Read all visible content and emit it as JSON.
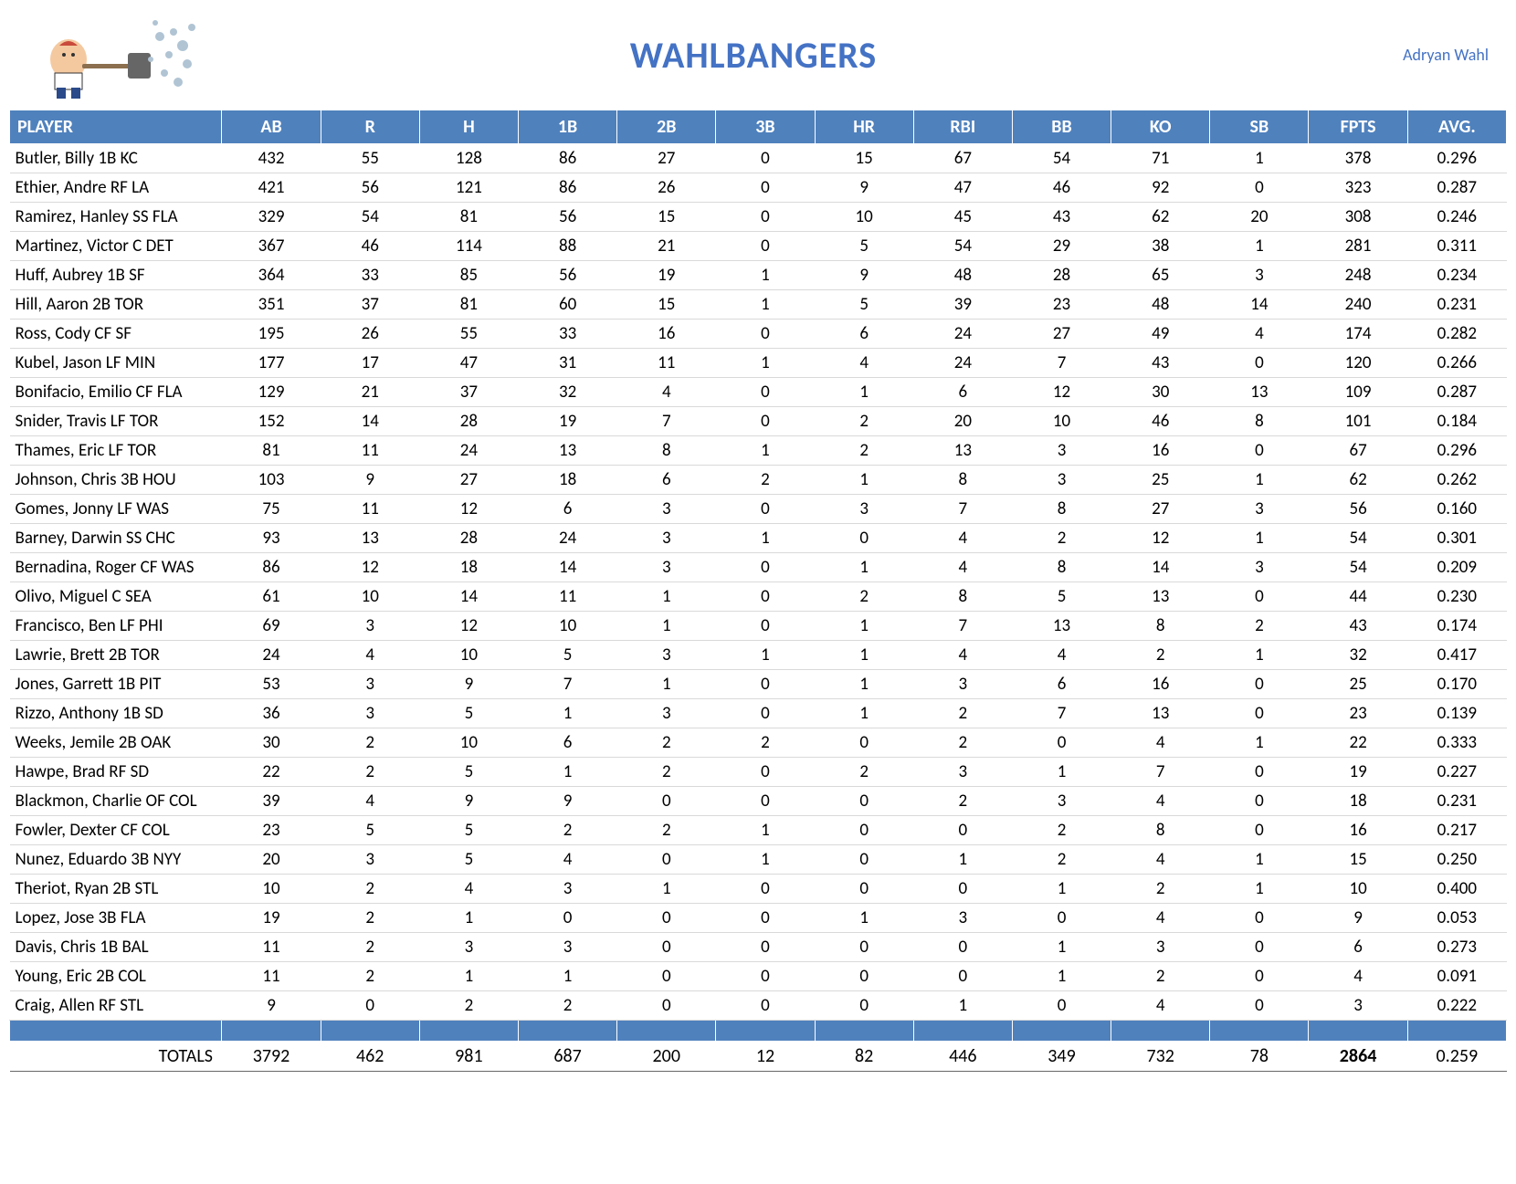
{
  "team_name": "WAHLBANGERS",
  "owner_name": "Adryan Wahl",
  "header_color": "#4f81bd",
  "title_color": "#4472c4",
  "columns": [
    "PLAYER",
    "AB",
    "R",
    "H",
    "1B",
    "2B",
    "3B",
    "HR",
    "RBI",
    "BB",
    "KO",
    "SB",
    "FPTS",
    "AVG."
  ],
  "rows": [
    {
      "player": "Butler, Billy 1B KC",
      "ab": "432",
      "r": "55",
      "h": "128",
      "_1b": "86",
      "_2b": "27",
      "_3b": "0",
      "hr": "15",
      "rbi": "67",
      "bb": "54",
      "ko": "71",
      "sb": "1",
      "fpts": "378",
      "avg": "0.296"
    },
    {
      "player": "Ethier, Andre RF LA",
      "ab": "421",
      "r": "56",
      "h": "121",
      "_1b": "86",
      "_2b": "26",
      "_3b": "0",
      "hr": "9",
      "rbi": "47",
      "bb": "46",
      "ko": "92",
      "sb": "0",
      "fpts": "323",
      "avg": "0.287"
    },
    {
      "player": "Ramirez, Hanley SS FLA",
      "ab": "329",
      "r": "54",
      "h": "81",
      "_1b": "56",
      "_2b": "15",
      "_3b": "0",
      "hr": "10",
      "rbi": "45",
      "bb": "43",
      "ko": "62",
      "sb": "20",
      "fpts": "308",
      "avg": "0.246"
    },
    {
      "player": "Martinez, Victor C DET",
      "ab": "367",
      "r": "46",
      "h": "114",
      "_1b": "88",
      "_2b": "21",
      "_3b": "0",
      "hr": "5",
      "rbi": "54",
      "bb": "29",
      "ko": "38",
      "sb": "1",
      "fpts": "281",
      "avg": "0.311"
    },
    {
      "player": "Huff, Aubrey 1B SF",
      "ab": "364",
      "r": "33",
      "h": "85",
      "_1b": "56",
      "_2b": "19",
      "_3b": "1",
      "hr": "9",
      "rbi": "48",
      "bb": "28",
      "ko": "65",
      "sb": "3",
      "fpts": "248",
      "avg": "0.234"
    },
    {
      "player": "Hill, Aaron 2B TOR",
      "ab": "351",
      "r": "37",
      "h": "81",
      "_1b": "60",
      "_2b": "15",
      "_3b": "1",
      "hr": "5",
      "rbi": "39",
      "bb": "23",
      "ko": "48",
      "sb": "14",
      "fpts": "240",
      "avg": "0.231"
    },
    {
      "player": "Ross, Cody CF SF",
      "ab": "195",
      "r": "26",
      "h": "55",
      "_1b": "33",
      "_2b": "16",
      "_3b": "0",
      "hr": "6",
      "rbi": "24",
      "bb": "27",
      "ko": "49",
      "sb": "4",
      "fpts": "174",
      "avg": "0.282"
    },
    {
      "player": "Kubel, Jason LF MIN",
      "ab": "177",
      "r": "17",
      "h": "47",
      "_1b": "31",
      "_2b": "11",
      "_3b": "1",
      "hr": "4",
      "rbi": "24",
      "bb": "7",
      "ko": "43",
      "sb": "0",
      "fpts": "120",
      "avg": "0.266"
    },
    {
      "player": "Bonifacio, Emilio CF FLA",
      "ab": "129",
      "r": "21",
      "h": "37",
      "_1b": "32",
      "_2b": "4",
      "_3b": "0",
      "hr": "1",
      "rbi": "6",
      "bb": "12",
      "ko": "30",
      "sb": "13",
      "fpts": "109",
      "avg": "0.287"
    },
    {
      "player": "Snider, Travis LF TOR",
      "ab": "152",
      "r": "14",
      "h": "28",
      "_1b": "19",
      "_2b": "7",
      "_3b": "0",
      "hr": "2",
      "rbi": "20",
      "bb": "10",
      "ko": "46",
      "sb": "8",
      "fpts": "101",
      "avg": "0.184"
    },
    {
      "player": "Thames, Eric LF TOR",
      "ab": "81",
      "r": "11",
      "h": "24",
      "_1b": "13",
      "_2b": "8",
      "_3b": "1",
      "hr": "2",
      "rbi": "13",
      "bb": "3",
      "ko": "16",
      "sb": "0",
      "fpts": "67",
      "avg": "0.296"
    },
    {
      "player": "Johnson, Chris 3B HOU",
      "ab": "103",
      "r": "9",
      "h": "27",
      "_1b": "18",
      "_2b": "6",
      "_3b": "2",
      "hr": "1",
      "rbi": "8",
      "bb": "3",
      "ko": "25",
      "sb": "1",
      "fpts": "62",
      "avg": "0.262"
    },
    {
      "player": "Gomes, Jonny LF WAS",
      "ab": "75",
      "r": "11",
      "h": "12",
      "_1b": "6",
      "_2b": "3",
      "_3b": "0",
      "hr": "3",
      "rbi": "7",
      "bb": "8",
      "ko": "27",
      "sb": "3",
      "fpts": "56",
      "avg": "0.160"
    },
    {
      "player": "Barney, Darwin SS CHC",
      "ab": "93",
      "r": "13",
      "h": "28",
      "_1b": "24",
      "_2b": "3",
      "_3b": "1",
      "hr": "0",
      "rbi": "4",
      "bb": "2",
      "ko": "12",
      "sb": "1",
      "fpts": "54",
      "avg": "0.301"
    },
    {
      "player": "Bernadina, Roger CF WAS",
      "ab": "86",
      "r": "12",
      "h": "18",
      "_1b": "14",
      "_2b": "3",
      "_3b": "0",
      "hr": "1",
      "rbi": "4",
      "bb": "8",
      "ko": "14",
      "sb": "3",
      "fpts": "54",
      "avg": "0.209"
    },
    {
      "player": "Olivo, Miguel C SEA",
      "ab": "61",
      "r": "10",
      "h": "14",
      "_1b": "11",
      "_2b": "1",
      "_3b": "0",
      "hr": "2",
      "rbi": "8",
      "bb": "5",
      "ko": "13",
      "sb": "0",
      "fpts": "44",
      "avg": "0.230"
    },
    {
      "player": "Francisco, Ben LF PHI",
      "ab": "69",
      "r": "3",
      "h": "12",
      "_1b": "10",
      "_2b": "1",
      "_3b": "0",
      "hr": "1",
      "rbi": "7",
      "bb": "13",
      "ko": "8",
      "sb": "2",
      "fpts": "43",
      "avg": "0.174"
    },
    {
      "player": "Lawrie, Brett 2B TOR",
      "ab": "24",
      "r": "4",
      "h": "10",
      "_1b": "5",
      "_2b": "3",
      "_3b": "1",
      "hr": "1",
      "rbi": "4",
      "bb": "4",
      "ko": "2",
      "sb": "1",
      "fpts": "32",
      "avg": "0.417"
    },
    {
      "player": "Jones, Garrett 1B PIT",
      "ab": "53",
      "r": "3",
      "h": "9",
      "_1b": "7",
      "_2b": "1",
      "_3b": "0",
      "hr": "1",
      "rbi": "3",
      "bb": "6",
      "ko": "16",
      "sb": "0",
      "fpts": "25",
      "avg": "0.170"
    },
    {
      "player": "Rizzo, Anthony 1B SD",
      "ab": "36",
      "r": "3",
      "h": "5",
      "_1b": "1",
      "_2b": "3",
      "_3b": "0",
      "hr": "1",
      "rbi": "2",
      "bb": "7",
      "ko": "13",
      "sb": "0",
      "fpts": "23",
      "avg": "0.139"
    },
    {
      "player": "Weeks, Jemile 2B OAK",
      "ab": "30",
      "r": "2",
      "h": "10",
      "_1b": "6",
      "_2b": "2",
      "_3b": "2",
      "hr": "0",
      "rbi": "2",
      "bb": "0",
      "ko": "4",
      "sb": "1",
      "fpts": "22",
      "avg": "0.333"
    },
    {
      "player": "Hawpe, Brad RF SD",
      "ab": "22",
      "r": "2",
      "h": "5",
      "_1b": "1",
      "_2b": "2",
      "_3b": "0",
      "hr": "2",
      "rbi": "3",
      "bb": "1",
      "ko": "7",
      "sb": "0",
      "fpts": "19",
      "avg": "0.227"
    },
    {
      "player": "Blackmon, Charlie OF COL",
      "ab": "39",
      "r": "4",
      "h": "9",
      "_1b": "9",
      "_2b": "0",
      "_3b": "0",
      "hr": "0",
      "rbi": "2",
      "bb": "3",
      "ko": "4",
      "sb": "0",
      "fpts": "18",
      "avg": "0.231"
    },
    {
      "player": "Fowler, Dexter CF COL",
      "ab": "23",
      "r": "5",
      "h": "5",
      "_1b": "2",
      "_2b": "2",
      "_3b": "1",
      "hr": "0",
      "rbi": "0",
      "bb": "2",
      "ko": "8",
      "sb": "0",
      "fpts": "16",
      "avg": "0.217"
    },
    {
      "player": "Nunez, Eduardo 3B NYY",
      "ab": "20",
      "r": "3",
      "h": "5",
      "_1b": "4",
      "_2b": "0",
      "_3b": "1",
      "hr": "0",
      "rbi": "1",
      "bb": "2",
      "ko": "4",
      "sb": "1",
      "fpts": "15",
      "avg": "0.250"
    },
    {
      "player": "Theriot, Ryan 2B STL",
      "ab": "10",
      "r": "2",
      "h": "4",
      "_1b": "3",
      "_2b": "1",
      "_3b": "0",
      "hr": "0",
      "rbi": "0",
      "bb": "1",
      "ko": "2",
      "sb": "1",
      "fpts": "10",
      "avg": "0.400"
    },
    {
      "player": "Lopez, Jose 3B FLA",
      "ab": "19",
      "r": "2",
      "h": "1",
      "_1b": "0",
      "_2b": "0",
      "_3b": "0",
      "hr": "1",
      "rbi": "3",
      "bb": "0",
      "ko": "4",
      "sb": "0",
      "fpts": "9",
      "avg": "0.053"
    },
    {
      "player": "Davis, Chris 1B BAL",
      "ab": "11",
      "r": "2",
      "h": "3",
      "_1b": "3",
      "_2b": "0",
      "_3b": "0",
      "hr": "0",
      "rbi": "0",
      "bb": "1",
      "ko": "3",
      "sb": "0",
      "fpts": "6",
      "avg": "0.273"
    },
    {
      "player": "Young, Eric 2B COL",
      "ab": "11",
      "r": "2",
      "h": "1",
      "_1b": "1",
      "_2b": "0",
      "_3b": "0",
      "hr": "0",
      "rbi": "0",
      "bb": "1",
      "ko": "2",
      "sb": "0",
      "fpts": "4",
      "avg": "0.091"
    },
    {
      "player": "Craig, Allen RF STL",
      "ab": "9",
      "r": "0",
      "h": "2",
      "_1b": "2",
      "_2b": "0",
      "_3b": "0",
      "hr": "0",
      "rbi": "1",
      "bb": "0",
      "ko": "4",
      "sb": "0",
      "fpts": "3",
      "avg": "0.222"
    }
  ],
  "totals": {
    "label": "TOTALS",
    "ab": "3792",
    "r": "462",
    "h": "981",
    "_1b": "687",
    "_2b": "200",
    "_3b": "12",
    "hr": "82",
    "rbi": "446",
    "bb": "349",
    "ko": "732",
    "sb": "78",
    "fpts": "2864",
    "avg": "0.259"
  }
}
